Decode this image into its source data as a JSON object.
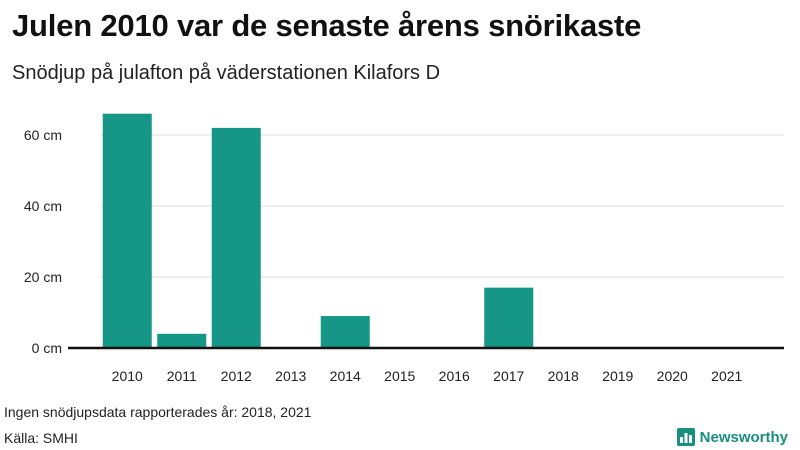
{
  "header": {
    "title": "Julen 2010 var de senaste årens snörikaste",
    "subtitle": "Snödjup på julafton på väderstationen Kilafors D"
  },
  "footer": {
    "note": "Ingen snödjupsdata rapporterades år: 2018, 2021",
    "source": "Källa: SMHI",
    "brand": "Newsworthy",
    "brand_icon": "newsworthy-logo-icon"
  },
  "colors": {
    "bar": "#159686",
    "brand": "#1a8f80",
    "baseline": "#111111",
    "grid": "#dddddd"
  },
  "chart_data": {
    "type": "bar",
    "title": "Julen 2010 var de senaste årens snörikaste",
    "subtitle": "Snödjup på julafton på väderstationen Kilafors D",
    "categories": [
      "2010",
      "2011",
      "2012",
      "2013",
      "2014",
      "2015",
      "2016",
      "2017",
      "2018",
      "2019",
      "2020",
      "2021"
    ],
    "values": [
      66,
      4,
      62,
      0,
      9,
      0,
      0,
      17,
      0,
      0,
      0,
      0
    ],
    "ylim": [
      0,
      70
    ],
    "yticks": [
      0,
      20,
      40,
      60
    ],
    "ytick_labels": [
      "0 cm",
      "20 cm",
      "40 cm",
      "60 cm"
    ],
    "grid": true,
    "legend": "none"
  }
}
